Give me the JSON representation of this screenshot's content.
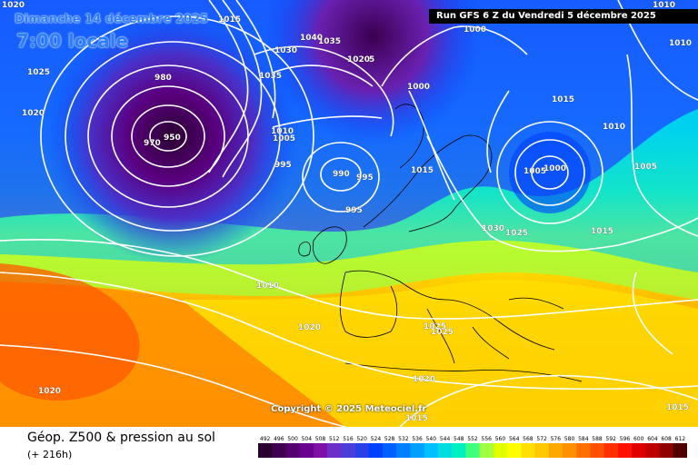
{
  "forecast_valid": "Dimanche 14 décembre 2025",
  "local_time": "7:00 locale",
  "run_info": "Run GFS 6 Z du Vendredi 5 décembre 2025",
  "copyright": "Copyright © 2025 Meteociel.fr",
  "legend": {
    "title": "Géop. Z500 & pression au sol",
    "lead_time": "(+ 216h)",
    "scale_values": [
      492,
      496,
      500,
      504,
      508,
      512,
      516,
      520,
      524,
      528,
      532,
      536,
      540,
      544,
      548,
      552,
      556,
      560,
      564,
      568,
      572,
      576,
      580,
      584,
      588,
      592,
      596,
      600,
      604,
      608,
      612
    ],
    "scale_colors": [
      "#2a0030",
      "#3f0050",
      "#550070",
      "#6a0090",
      "#7e10a8",
      "#6a30c8",
      "#4a40d8",
      "#2a40e8",
      "#0040ff",
      "#0060ff",
      "#0080ff",
      "#00a0ff",
      "#00c0ff",
      "#00dde0",
      "#00f0c0",
      "#40ff80",
      "#a0ff40",
      "#e0ff00",
      "#ffff00",
      "#ffe000",
      "#ffc800",
      "#ffa800",
      "#ff9000",
      "#ff7000",
      "#ff5000",
      "#ff3000",
      "#ff1000",
      "#e00000",
      "#c00000",
      "#900000",
      "#500000"
    ]
  },
  "isobar_labels": [
    "1020",
    "1015",
    "1025",
    "1020",
    "980",
    "970",
    "950",
    "1030",
    "1040",
    "1035",
    "1020",
    "5",
    "1035",
    "1000",
    "1000",
    "1010",
    "1005",
    "995",
    "990",
    "995",
    "995",
    "1015",
    "1015",
    "1010",
    "1005",
    "1000",
    "1005",
    "1030",
    "1025",
    "1015",
    "1010",
    "1020",
    "1025",
    "1025",
    "1020",
    "1015",
    "1020",
    "1015",
    "1010",
    "1010"
  ]
}
